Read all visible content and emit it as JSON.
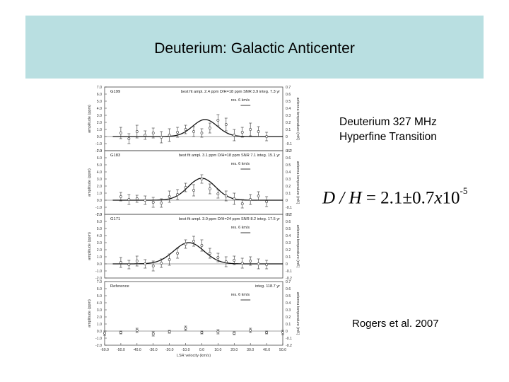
{
  "slide": {
    "title": "Deuterium: Galactic Anticenter",
    "note_line1": "Deuterium 327 MHz",
    "note_line2": "Hyperfine Transition",
    "equation": {
      "lhs": "D / H",
      "eq": " = ",
      "value": "2.1",
      "pm": "±",
      "err": "0.7",
      "times": "x",
      "base": "10",
      "exp": "-5"
    },
    "citation": "Rogers et al. 2007"
  },
  "chart_data": [
    {
      "type": "scatter",
      "source": "G199",
      "annotation": "best fit ampl. 2.4 ppm D/H=18 ppm SNR 3.9 integ. 7.3 yr",
      "resolution_label": "res. 6 km/s",
      "ylabel_left": "amplitude (ppm)",
      "ylabel_right": "antenna temperature (mK)",
      "y_ticks": [
        "7.0",
        "6.0",
        "5.0",
        "4.0",
        "3.0",
        "2.0",
        "1.0",
        "0.0",
        "-1.0",
        "-2.0"
      ],
      "y_ticks_right": [
        "0.7",
        "0.6",
        "0.5",
        "0.4",
        "0.3",
        "0.2",
        "0.1",
        "0",
        "-0.1",
        "-0.2"
      ],
      "ylim": [
        -2.0,
        7.0
      ],
      "x": [
        -50,
        -45,
        -40,
        -35,
        -30,
        -25,
        -20,
        -15,
        -10,
        -5,
        0,
        5,
        10,
        15,
        20,
        25,
        30,
        35,
        40
      ],
      "y": [
        0.5,
        -0.3,
        0.7,
        0.2,
        0.5,
        -0.1,
        0.2,
        0.6,
        1.0,
        0.7,
        0.5,
        1.2,
        2.3,
        1.7,
        0.2,
        0.6,
        1.0,
        0.7,
        0.0
      ],
      "err": [
        0.8,
        0.7,
        0.9,
        0.6,
        0.7,
        0.8,
        0.9,
        0.7,
        0.6,
        0.7,
        0.6,
        0.7,
        0.8,
        0.9,
        0.8,
        0.7,
        0.9,
        0.7,
        0.6
      ],
      "fit": {
        "amplitude": 2.4,
        "center": 2.0,
        "fwhm": 18.0
      }
    },
    {
      "type": "scatter",
      "source": "G183",
      "annotation": "best fit ampl. 3.1 ppm D/H=18 ppm SNR 7.1 integ. 15.1 yr",
      "resolution_label": "res. 6 km/s",
      "ylabel_left": "amplitude (ppm)",
      "ylabel_right": "antenna temperature (mK)",
      "y_ticks": [
        "7.0",
        "6.0",
        "5.0",
        "4.0",
        "3.0",
        "2.0",
        "1.0",
        "0.0",
        "-1.0",
        "-2.0"
      ],
      "y_ticks_right": [
        "0.7",
        "0.6",
        "0.5",
        "0.4",
        "0.3",
        "0.2",
        "0.1",
        "0",
        "-0.1",
        "-0.2"
      ],
      "ylim": [
        -2.0,
        7.0
      ],
      "x": [
        -50,
        -45,
        -40,
        -35,
        -30,
        -25,
        -20,
        -15,
        -10,
        -5,
        0,
        5,
        10,
        15,
        20,
        25,
        30,
        35,
        40
      ],
      "y": [
        0.5,
        0.1,
        0.2,
        0.0,
        -0.3,
        -0.4,
        0.5,
        0.8,
        1.8,
        1.4,
        3.0,
        1.6,
        0.9,
        0.6,
        0.2,
        -0.5,
        0.1,
        0.6,
        -0.2
      ],
      "err": [
        0.6,
        0.7,
        0.5,
        0.6,
        0.7,
        0.6,
        0.8,
        0.7,
        0.6,
        0.8,
        0.6,
        0.7,
        0.6,
        0.7,
        0.8,
        0.6,
        0.7,
        0.6,
        0.7
      ],
      "fit": {
        "amplitude": 3.1,
        "center": 0.0,
        "fwhm": 20.0
      }
    },
    {
      "type": "scatter",
      "source": "G171",
      "annotation": "best fit ampl. 3.0 ppm D/H=24 ppm SNR 8.2 integ. 17.5 yr",
      "resolution_label": "res. 6 km/s",
      "ylabel_left": "amplitude (ppm)",
      "ylabel_right": "antenna temperature (mK)",
      "y_ticks": [
        "7.0",
        "6.0",
        "5.0",
        "4.0",
        "3.0",
        "2.0",
        "1.0",
        "0.0",
        "-1.0",
        "-2.0"
      ],
      "y_ticks_right": [
        "0.7",
        "0.6",
        "0.5",
        "0.4",
        "0.3",
        "0.2",
        "0.1",
        "0",
        "-0.1",
        "-0.2"
      ],
      "ylim": [
        -2.0,
        7.0
      ],
      "x": [
        -50,
        -45,
        -40,
        -35,
        -30,
        -25,
        -20,
        -15,
        -10,
        -5,
        0,
        5,
        10,
        15,
        20,
        25,
        30,
        35,
        40
      ],
      "y": [
        0.2,
        -0.1,
        0.4,
        0.0,
        -0.3,
        0.1,
        0.6,
        1.5,
        2.8,
        3.2,
        2.6,
        1.5,
        0.9,
        0.3,
        0.5,
        0.1,
        0.4,
        0.0,
        -0.1
      ],
      "err": [
        0.7,
        0.6,
        0.7,
        0.6,
        0.7,
        0.6,
        0.8,
        0.7,
        0.6,
        0.7,
        0.8,
        0.7,
        0.6,
        0.7,
        0.6,
        0.7,
        0.6,
        0.7,
        0.6
      ],
      "fit": {
        "amplitude": 3.0,
        "center": -8.0,
        "fwhm": 22.0
      }
    },
    {
      "type": "scatter",
      "source": "Reference",
      "annotation": "integ. 118.7 yr",
      "resolution_label": "res. 6 km/s",
      "ylabel_left": "amplitude (ppm)",
      "ylabel_right": "antenna temperature (mK)",
      "y_ticks": [
        "7.0",
        "6.0",
        "5.0",
        "4.0",
        "3.0",
        "2.0",
        "1.0",
        "0.0",
        "-1.0",
        "-2.0"
      ],
      "y_ticks_right": [
        "0.7",
        "0.6",
        "0.5",
        "0.4",
        "0.3",
        "0.2",
        "0.1",
        "0",
        "-0.1",
        "-0.2"
      ],
      "ylim": [
        -2.0,
        7.0
      ],
      "x": [
        -60,
        -50,
        -40,
        -30,
        -20,
        -10,
        0,
        10,
        20,
        30,
        40,
        50
      ],
      "y": [
        -0.3,
        -0.2,
        0.1,
        -0.4,
        -0.1,
        0.4,
        -0.2,
        -0.1,
        -0.3,
        0.1,
        -0.2,
        -0.2
      ],
      "err": [
        0.3,
        0.2,
        0.3,
        0.3,
        0.2,
        0.3,
        0.2,
        0.3,
        0.2,
        0.3,
        0.2,
        0.3
      ],
      "fit": null
    }
  ],
  "x_axis": {
    "label": "LSR velocity (km/s)",
    "ticks": [
      -60,
      -50,
      -40,
      -30,
      -20,
      -10,
      0,
      10,
      20,
      30,
      40,
      50
    ],
    "tick_labels": [
      "-60.0",
      "-50.0",
      "-40.0",
      "-30.0",
      "-20.0",
      "-10.0",
      "0.0",
      "10.0",
      "20.0",
      "30.0",
      "40.0",
      "50.0"
    ],
    "xlim": [
      -60,
      50
    ]
  }
}
